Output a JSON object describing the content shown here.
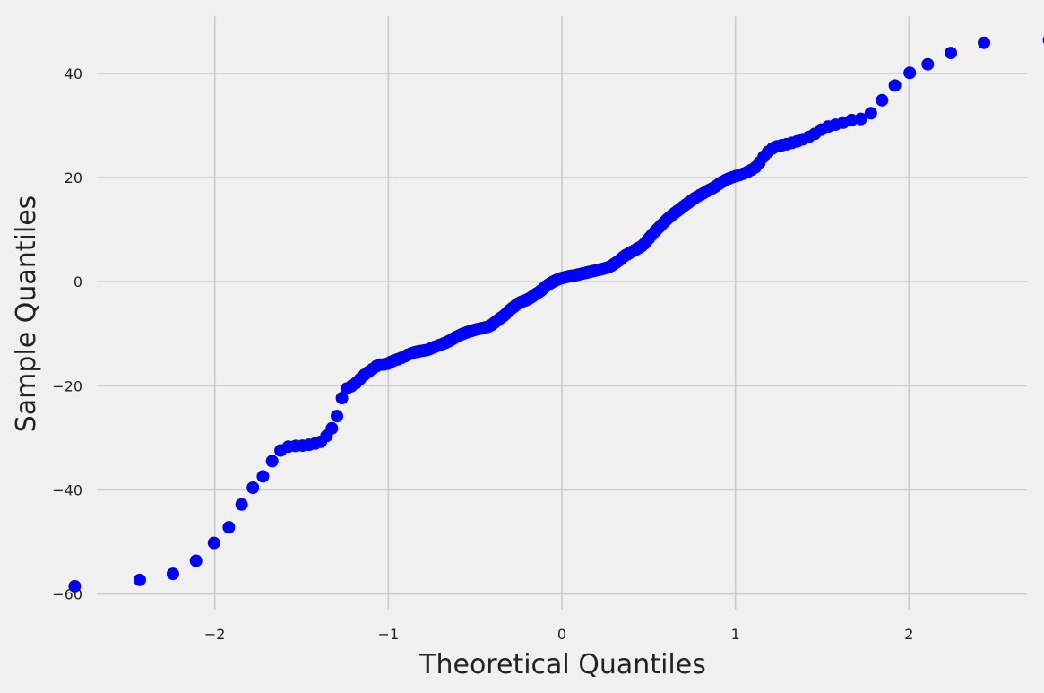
{
  "chart_data": {
    "type": "scatter",
    "title": "",
    "xlabel": "Theoretical Quantiles",
    "ylabel": "Sample Quantiles",
    "xlim": [
      -2.68,
      2.68
    ],
    "ylim": [
      -63,
      51
    ],
    "xticks": [
      -2,
      -1,
      0,
      1,
      2
    ],
    "xtick_labels": [
      "−2",
      "−1",
      "0",
      "1",
      "2"
    ],
    "yticks": [
      -60,
      -40,
      -20,
      0,
      20,
      40
    ],
    "ytick_labels": [
      "−60",
      "−40",
      "−20",
      "0",
      "20",
      "40"
    ],
    "grid": true,
    "legend": "none",
    "colors": {
      "marker": "#0000ff",
      "background": "#f0f0f0",
      "grid": "#cbcbcb"
    },
    "anchors": [
      [
        -2.576,
        -58.5
      ],
      [
        -2.326,
        -56.4
      ],
      [
        -2.17,
        -55.9
      ],
      [
        -2.054,
        -51.6
      ],
      [
        -1.96,
        -48.9
      ],
      [
        -1.881,
        -45.6
      ],
      [
        -1.812,
        -40.2
      ],
      [
        -1.751,
        -39.0
      ],
      [
        -1.695,
        -35.9
      ],
      [
        -1.645,
        -33.1
      ],
      [
        -1.598,
        -31.8
      ],
      [
        -1.555,
        -31.6
      ],
      [
        -1.514,
        -31.5
      ],
      [
        -1.476,
        -31.5
      ],
      [
        -1.44,
        -31.2
      ],
      [
        -1.405,
        -31.0
      ],
      [
        -1.372,
        -30.5
      ],
      [
        -1.341,
        -28.8
      ],
      [
        -1.311,
        -27.6
      ],
      [
        -1.282,
        -24.2
      ],
      [
        -1.254,
        -20.7
      ],
      [
        -1.227,
        -20.4
      ],
      [
        -1.2,
        -19.8
      ],
      [
        -1.175,
        -19.2
      ],
      [
        -1.15,
        -18.2
      ],
      [
        -1.126,
        -17.6
      ],
      [
        -1.103,
        -17.1
      ],
      [
        -1.08,
        -16.5
      ],
      [
        -1.058,
        -16.0
      ],
      [
        -1.036,
        -15.9
      ],
      [
        -1.015,
        -15.9
      ],
      [
        -0.994,
        -15.6
      ],
      [
        -0.974,
        -15.2
      ],
      [
        -0.954,
        -15.0
      ],
      [
        -0.935,
        -14.8
      ],
      [
        -0.915,
        -14.5
      ],
      [
        -0.878,
        -13.9
      ],
      [
        -0.842,
        -13.5
      ],
      [
        -0.806,
        -13.3
      ],
      [
        -0.772,
        -13.1
      ],
      [
        -0.739,
        -12.6
      ],
      [
        -0.706,
        -12.2
      ],
      [
        -0.674,
        -11.8
      ],
      [
        -0.643,
        -11.3
      ],
      [
        -0.613,
        -10.7
      ],
      [
        -0.583,
        -10.2
      ],
      [
        -0.553,
        -9.8
      ],
      [
        -0.524,
        -9.5
      ],
      [
        -0.496,
        -9.2
      ],
      [
        -0.468,
        -9.0
      ],
      [
        -0.44,
        -8.8
      ],
      [
        -0.412,
        -8.5
      ],
      [
        -0.385,
        -7.8
      ],
      [
        -0.358,
        -7.1
      ],
      [
        -0.332,
        -6.5
      ],
      [
        -0.305,
        -5.6
      ],
      [
        -0.279,
        -4.9
      ],
      [
        -0.253,
        -4.2
      ],
      [
        -0.228,
        -3.8
      ],
      [
        -0.202,
        -3.5
      ],
      [
        -0.176,
        -3.0
      ],
      [
        -0.151,
        -2.4
      ],
      [
        -0.126,
        -1.9
      ],
      [
        -0.1,
        -1.1
      ],
      [
        -0.075,
        -0.5
      ],
      [
        -0.05,
        0.0
      ],
      [
        -0.025,
        0.4
      ],
      [
        0.0,
        0.7
      ],
      [
        0.025,
        0.9
      ],
      [
        0.05,
        1.1
      ],
      [
        0.075,
        1.2
      ],
      [
        0.1,
        1.4
      ],
      [
        0.126,
        1.6
      ],
      [
        0.151,
        1.8
      ],
      [
        0.176,
        2.0
      ],
      [
        0.202,
        2.2
      ],
      [
        0.228,
        2.4
      ],
      [
        0.253,
        2.6
      ],
      [
        0.279,
        2.9
      ],
      [
        0.305,
        3.5
      ],
      [
        0.332,
        4.1
      ],
      [
        0.358,
        4.9
      ],
      [
        0.385,
        5.4
      ],
      [
        0.412,
        5.9
      ],
      [
        0.44,
        6.4
      ],
      [
        0.468,
        7.0
      ],
      [
        0.496,
        8.1
      ],
      [
        0.524,
        9.2
      ],
      [
        0.553,
        10.2
      ],
      [
        0.583,
        11.2
      ],
      [
        0.613,
        12.2
      ],
      [
        0.643,
        13.0
      ],
      [
        0.674,
        13.8
      ],
      [
        0.706,
        14.6
      ],
      [
        0.739,
        15.4
      ],
      [
        0.772,
        16.2
      ],
      [
        0.806,
        16.8
      ],
      [
        0.842,
        17.5
      ],
      [
        0.878,
        18.1
      ],
      [
        0.915,
        19.0
      ],
      [
        0.954,
        19.7
      ],
      [
        0.994,
        20.2
      ],
      [
        1.036,
        20.6
      ],
      [
        1.08,
        21.2
      ],
      [
        1.126,
        22.2
      ],
      [
        1.15,
        23.5
      ],
      [
        1.175,
        24.5
      ],
      [
        1.2,
        25.3
      ],
      [
        1.227,
        25.9
      ],
      [
        1.254,
        26.1
      ],
      [
        1.282,
        26.3
      ],
      [
        1.311,
        26.5
      ],
      [
        1.341,
        26.8
      ],
      [
        1.372,
        27.1
      ],
      [
        1.405,
        27.6
      ],
      [
        1.44,
        28.0
      ],
      [
        1.476,
        28.8
      ],
      [
        1.514,
        29.6
      ],
      [
        1.555,
        30.0
      ],
      [
        1.598,
        30.3
      ],
      [
        1.645,
        30.8
      ],
      [
        1.695,
        31.3
      ],
      [
        1.751,
        31.2
      ],
      [
        1.812,
        33.6
      ],
      [
        1.881,
        36.2
      ],
      [
        1.96,
        39.3
      ],
      [
        2.054,
        41.0
      ],
      [
        2.17,
        42.6
      ],
      [
        2.326,
        45.5
      ],
      [
        2.576,
        46.4
      ]
    ]
  }
}
